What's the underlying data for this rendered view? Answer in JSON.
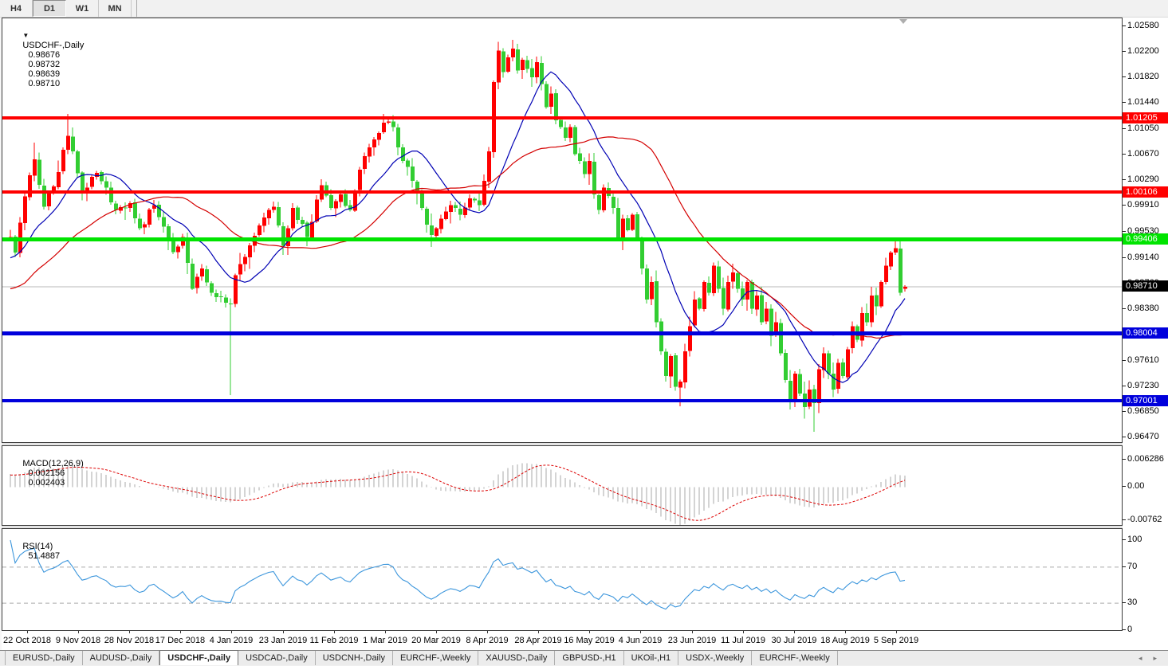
{
  "toolbar": {
    "timeframes": [
      "H4",
      "D1",
      "W1",
      "MN"
    ],
    "active": "D1"
  },
  "title": {
    "symbol": "USDCHF-,Daily",
    "open": "0.98676",
    "high": "0.98732",
    "low": "0.98639",
    "close": "0.98710"
  },
  "colors": {
    "bull": "#FF0000",
    "bear": "#32CD32",
    "ma_fast": "#0000B4",
    "ma_slow": "#D40000",
    "macd_hist": "#A8A8A8",
    "macd_signal": "#DD0000",
    "rsi_line": "#3C96DC",
    "rsi_levels": "#ABABAB",
    "level_red": "#FF0000",
    "level_green": "#00E400",
    "level_blue": "#0000DC",
    "current_price_line": "#B8B8B8",
    "current_price_label_bg": "#000000"
  },
  "price_axis": {
    "ticks": [
      "1.02580",
      "1.02200",
      "1.01820",
      "1.01440",
      "1.01050",
      "1.00670",
      "1.00290",
      "0.99910",
      "0.99530",
      "0.99140",
      "0.98760",
      "0.98380",
      "0.98000",
      "0.97610",
      "0.97230",
      "0.96850",
      "0.96470"
    ]
  },
  "levels": [
    {
      "label": "1.01205",
      "price": 1.01205,
      "color_key": "level_red",
      "thickness": 4,
      "kind": "resistance"
    },
    {
      "label": "1.00106",
      "price": 1.00106,
      "color_key": "level_red",
      "thickness": 4,
      "kind": "resistance"
    },
    {
      "label": "0.99406",
      "price": 0.99406,
      "color_key": "level_green",
      "thickness": 5,
      "kind": "pivot"
    },
    {
      "label": "0.98004",
      "price": 0.98004,
      "color_key": "level_blue",
      "thickness": 5,
      "kind": "support"
    },
    {
      "label": "0.97001",
      "price": 0.97001,
      "color_key": "level_blue",
      "thickness": 4,
      "kind": "support"
    }
  ],
  "current_price": {
    "label": "0.98710",
    "price": 0.9871
  },
  "macd_panel": {
    "label": "MACD(12,26,9)",
    "value_main": "0.002156",
    "value_signal": "0.002403",
    "ticks": [
      {
        "v": 0.006286,
        "label": "0.006286"
      },
      {
        "v": 0,
        "label": "0.00"
      },
      {
        "v": -0.00762,
        "label": "-0.00762"
      }
    ]
  },
  "rsi_panel": {
    "label": "RSI(14)",
    "value": "51.4887",
    "ticks": [
      {
        "v": 100,
        "label": "100"
      },
      {
        "v": 70,
        "label": "70"
      },
      {
        "v": 30,
        "label": "30"
      },
      {
        "v": 0,
        "label": "0"
      }
    ],
    "levels": [
      70,
      30
    ]
  },
  "date_axis": {
    "labels": [
      "22 Oct 2018",
      "9 Nov 2018",
      "28 Nov 2018",
      "17 Dec 2018",
      "4 Jan 2019",
      "23 Jan 2019",
      "11 Feb 2019",
      "1 Mar 2019",
      "20 Mar 2019",
      "8 Apr 2019",
      "28 Apr 2019",
      "16 May 2019",
      "4 Jun 2019",
      "23 Jun 2019",
      "11 Jul 2019",
      "30 Jul 2019",
      "18 Aug 2019",
      "5 Sep 2019"
    ]
  },
  "tabs": {
    "items": [
      "EURUSD-,Daily",
      "AUDUSD-,Daily",
      "USDCHF-,Daily",
      "USDCAD-,Daily",
      "USDCNH-,Daily",
      "EURCHF-,Weekly",
      "XAUUSD-,Daily",
      "GBPUSD-,H1",
      "UKOil-,H1",
      "USDX-,Weekly",
      "EURCHF-,Weekly"
    ],
    "active_index": 2
  },
  "chart_data": {
    "type": "candlestick",
    "symbol": "USDCHF",
    "timeframe": "Daily",
    "title": "USDCHF-,Daily",
    "up_color": "red",
    "down_color": "green",
    "bars_visible": 188,
    "price_range": {
      "top": 1.0258,
      "bottom": 0.9647
    },
    "last_candle": {
      "open": 0.98676,
      "high": 0.98732,
      "low": 0.98639,
      "close": 0.9871
    },
    "close_waypoints": [
      [
        0,
        0.9945
      ],
      [
        1,
        0.9922
      ],
      [
        3,
        1.0005
      ],
      [
        5,
        1.006
      ],
      [
        7,
        0.999
      ],
      [
        9,
        1.002
      ],
      [
        12,
        1.0095
      ],
      [
        13,
        1.0072
      ],
      [
        15,
        1.001
      ],
      [
        18,
        1.004
      ],
      [
        20,
        1.0018
      ],
      [
        22,
        0.9985
      ],
      [
        25,
        0.9995
      ],
      [
        27,
        0.9958
      ],
      [
        30,
        0.9992
      ],
      [
        32,
        0.996
      ],
      [
        34,
        0.9922
      ],
      [
        36,
        0.9945
      ],
      [
        38,
        0.9868
      ],
      [
        40,
        0.9898
      ],
      [
        42,
        0.9862
      ],
      [
        44,
        0.9856
      ],
      [
        46,
        0.9845
      ],
      [
        47,
        0.9888
      ],
      [
        49,
        0.9915
      ],
      [
        52,
        0.9962
      ],
      [
        55,
        0.999
      ],
      [
        57,
        0.9932
      ],
      [
        59,
        0.9988
      ],
      [
        62,
        0.9945
      ],
      [
        65,
        1.0022
      ],
      [
        67,
        0.9988
      ],
      [
        69,
        1.0008
      ],
      [
        71,
        0.9985
      ],
      [
        73,
        1.0045
      ],
      [
        75,
        1.0078
      ],
      [
        78,
        1.0115
      ],
      [
        80,
        1.0108
      ],
      [
        81,
        1.0078
      ],
      [
        84,
        1.0028
      ],
      [
        86,
        0.9988
      ],
      [
        88,
        0.9948
      ],
      [
        90,
        0.9972
      ],
      [
        92,
        0.9992
      ],
      [
        94,
        0.9978
      ],
      [
        96,
        1.0002
      ],
      [
        98,
        0.9992
      ],
      [
        99,
        1.0028
      ],
      [
        100,
        1.0072
      ],
      [
        101,
        1.0175
      ],
      [
        102,
        1.0222
      ],
      [
        103,
        1.019
      ],
      [
        104,
        1.0212
      ],
      [
        105,
        1.0225
      ],
      [
        106,
        1.0192
      ],
      [
        107,
        1.0208
      ],
      [
        109,
        1.0182
      ],
      [
        110,
        1.0205
      ],
      [
        111,
        1.0172
      ],
      [
        112,
        1.0138
      ],
      [
        113,
        1.0158
      ],
      [
        114,
        1.0118
      ],
      [
        116,
        1.0092
      ],
      [
        117,
        1.0108
      ],
      [
        118,
        1.0068
      ],
      [
        120,
        1.0038
      ],
      [
        121,
        1.0058
      ],
      [
        122,
        1.0008
      ],
      [
        123,
        0.9985
      ],
      [
        124,
        1.0018
      ],
      [
        126,
        0.9988
      ],
      [
        127,
        0.9942
      ],
      [
        128,
        0.9972
      ],
      [
        129,
        0.9955
      ],
      [
        130,
        0.9978
      ],
      [
        131,
        0.9942
      ],
      [
        132,
        0.9898
      ],
      [
        133,
        0.9852
      ],
      [
        134,
        0.9878
      ],
      [
        135,
        0.9818
      ],
      [
        136,
        0.9775
      ],
      [
        137,
        0.9738
      ],
      [
        138,
        0.9768
      ],
      [
        139,
        0.9722
      ],
      [
        140,
        0.973
      ],
      [
        141,
        0.9775
      ],
      [
        142,
        0.9812
      ],
      [
        143,
        0.9852
      ],
      [
        144,
        0.9838
      ],
      [
        145,
        0.9878
      ],
      [
        146,
        0.9862
      ],
      [
        147,
        0.9902
      ],
      [
        148,
        0.9868
      ],
      [
        149,
        0.9838
      ],
      [
        150,
        0.9878
      ],
      [
        151,
        0.9892
      ],
      [
        152,
        0.9868
      ],
      [
        153,
        0.9852
      ],
      [
        154,
        0.9878
      ],
      [
        155,
        0.9838
      ],
      [
        156,
        0.9858
      ],
      [
        157,
        0.9818
      ],
      [
        158,
        0.9838
      ],
      [
        159,
        0.9798
      ],
      [
        160,
        0.9818
      ],
      [
        161,
        0.9772
      ],
      [
        162,
        0.9732
      ],
      [
        163,
        0.9702
      ],
      [
        164,
        0.9742
      ],
      [
        165,
        0.9712
      ],
      [
        166,
        0.9692
      ],
      [
        167,
        0.9718
      ],
      [
        168,
        0.9698
      ],
      [
        169,
        0.9748
      ],
      [
        170,
        0.9772
      ],
      [
        171,
        0.9742
      ],
      [
        172,
        0.9718
      ],
      [
        173,
        0.9758
      ],
      [
        174,
        0.9738
      ],
      [
        175,
        0.9778
      ],
      [
        176,
        0.9812
      ],
      [
        177,
        0.9792
      ],
      [
        178,
        0.9832
      ],
      [
        179,
        0.9818
      ],
      [
        180,
        0.9858
      ],
      [
        181,
        0.9842
      ],
      [
        182,
        0.9878
      ],
      [
        183,
        0.9902
      ],
      [
        184,
        0.9922
      ],
      [
        185,
        0.9928
      ],
      [
        186,
        0.9862
      ],
      [
        187,
        0.9871
      ]
    ],
    "spikes": [
      {
        "i": 5,
        "high": 1.0085
      },
      {
        "i": 12,
        "high": 1.0128
      },
      {
        "i": 46,
        "low": 0.971
      },
      {
        "i": 78,
        "high": 1.0128
      },
      {
        "i": 80,
        "high": 1.0126
      },
      {
        "i": 88,
        "low": 0.993
      },
      {
        "i": 102,
        "high": 1.0235
      },
      {
        "i": 105,
        "high": 1.0238
      },
      {
        "i": 127,
        "low": 0.9938
      },
      {
        "i": 140,
        "low": 0.9693
      },
      {
        "i": 166,
        "low": 0.9675
      },
      {
        "i": 168,
        "low": 0.9655
      },
      {
        "i": 185,
        "high": 0.9943
      }
    ],
    "ma_fast": {
      "period": 13,
      "color": "#0000B4"
    },
    "ma_slow": {
      "period": 34,
      "color": "#D40000"
    },
    "macd": {
      "fast": 12,
      "slow": 26,
      "signal": 9,
      "current_main": 0.002156,
      "current_signal": 0.002403,
      "range": {
        "max": 0.006286,
        "min": -0.00762
      }
    },
    "rsi": {
      "period": 14,
      "current": 51.4887,
      "levels": [
        70,
        30
      ]
    }
  }
}
